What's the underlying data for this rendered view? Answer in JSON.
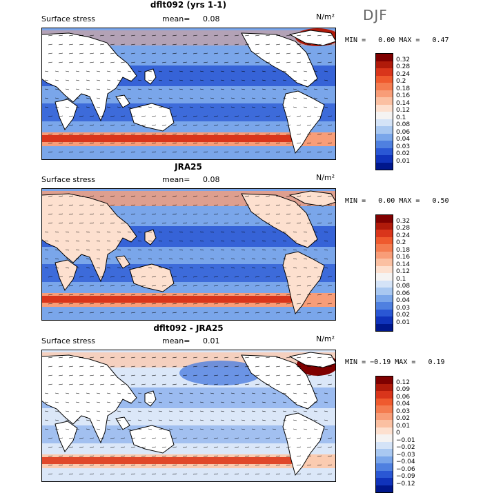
{
  "season": "DJF",
  "units": "N/m²",
  "panels": [
    {
      "title": "dflt092 (yrs 1-1)",
      "variable": "Surface stress",
      "mean_label": "mean=",
      "mean_value": "0.08",
      "min_label": "MIN =",
      "min_value": "0.00",
      "max_label": "MAX =",
      "max_value": "0.47",
      "colorbar_labels": [
        "0.32",
        "0.28",
        "0.24",
        "0.2",
        "0.18",
        "0.16",
        "0.14",
        "0.12",
        "0.1",
        "0.08",
        "0.06",
        "0.04",
        "0.03",
        "0.02",
        "0.01"
      ],
      "colorbar_colors": [
        "#7f0000",
        "#b01a0a",
        "#d9351b",
        "#ef5a2e",
        "#f47c50",
        "#f89d78",
        "#fbc0a2",
        "#fde0cf",
        "#f5f3f2",
        "#d4e3f7",
        "#a9c8f1",
        "#7aa6ea",
        "#4f80e0",
        "#2a57d4",
        "#1033bb",
        "#00178c"
      ]
    },
    {
      "title": "JRA25",
      "variable": "Surface stress",
      "mean_label": "mean=",
      "mean_value": "0.08",
      "min_label": "MIN =",
      "min_value": "0.00",
      "max_label": "MAX =",
      "max_value": "0.50",
      "colorbar_labels": [
        "0.32",
        "0.28",
        "0.24",
        "0.2",
        "0.18",
        "0.16",
        "0.14",
        "0.12",
        "0.1",
        "0.08",
        "0.06",
        "0.04",
        "0.03",
        "0.02",
        "0.01"
      ],
      "colorbar_colors": [
        "#7f0000",
        "#b01a0a",
        "#d9351b",
        "#ef5a2e",
        "#f47c50",
        "#f89d78",
        "#fbc0a2",
        "#fde0cf",
        "#f5f3f2",
        "#d4e3f7",
        "#a9c8f1",
        "#7aa6ea",
        "#4f80e0",
        "#2a57d4",
        "#1033bb",
        "#00178c"
      ]
    },
    {
      "title": "dflt092 - JRA25",
      "variable": "Surface stress",
      "mean_label": "mean=",
      "mean_value": "0.01",
      "min_label": "MIN =",
      "min_value": "−0.19",
      "max_label": "MAX =",
      "max_value": "0.19",
      "colorbar_labels": [
        "0.12",
        "0.09",
        "0.06",
        "0.04",
        "0.03",
        "0.02",
        "0.01",
        "0",
        "−0.01",
        "−0.02",
        "−0.03",
        "−0.04",
        "−0.06",
        "−0.09",
        "−0.12"
      ],
      "colorbar_colors": [
        "#7f0000",
        "#b01a0a",
        "#d9351b",
        "#ef5a2e",
        "#f47c50",
        "#f89d78",
        "#fbc0a2",
        "#fde0cf",
        "#f5f3f2",
        "#d4e3f7",
        "#a9c8f1",
        "#7aa6ea",
        "#4f80e0",
        "#2a57d4",
        "#1033bb",
        "#00178c"
      ]
    }
  ]
}
